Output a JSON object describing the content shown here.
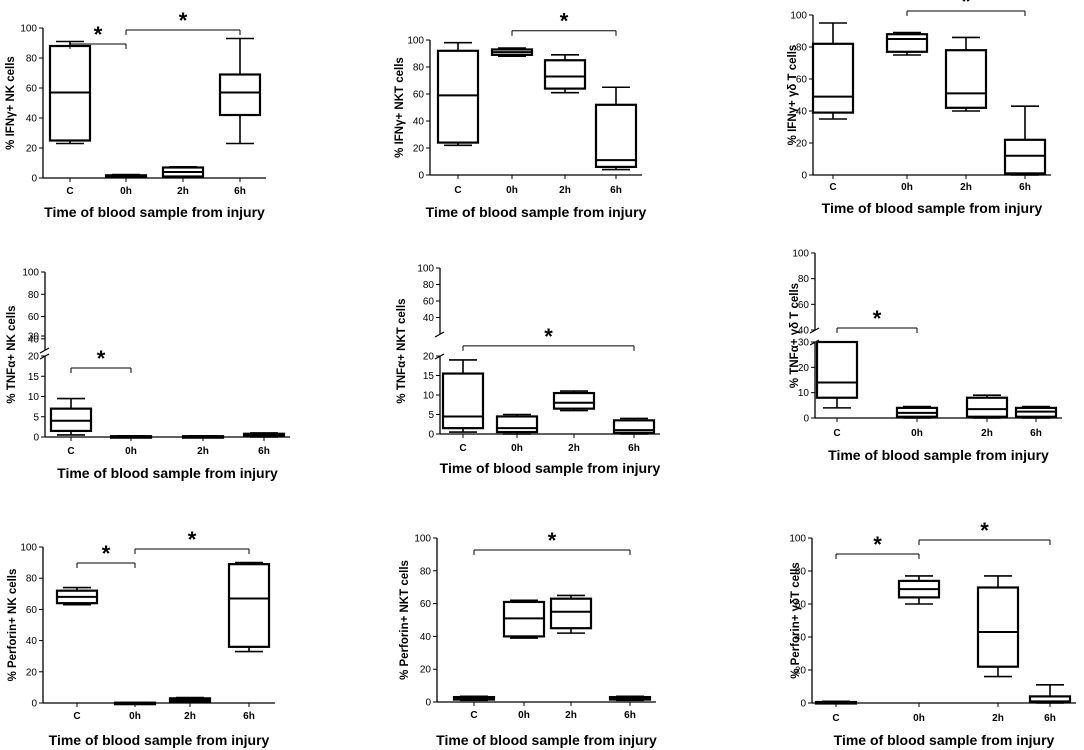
{
  "chart_data": [
    {
      "type": "box",
      "row": 0,
      "col": 0,
      "ylabel": "% IFNγ+ NK cells",
      "xlabel": "Time of blood sample from injury",
      "categories": [
        "C",
        "0h",
        "2h",
        "6h"
      ],
      "ylim": [
        0,
        100
      ],
      "yticks": [
        "0",
        "20",
        "40",
        "60",
        "80",
        "100"
      ],
      "boxes": [
        {
          "min": 23,
          "q1": 25,
          "median": 57,
          "q3": 88,
          "max": 91
        },
        {
          "min": 0.3,
          "q1": 0.8,
          "median": 1.2,
          "q3": 1.8,
          "max": 2.3
        },
        {
          "min": 0.5,
          "q1": 1,
          "median": 4,
          "q3": 7,
          "max": 7.5
        },
        {
          "min": 23,
          "q1": 42,
          "median": 57,
          "q3": 69,
          "max": 93
        }
      ],
      "significance": [
        {
          "from": 0,
          "to": 1,
          "label": "*"
        },
        {
          "from": 1,
          "to": 3,
          "label": "*"
        }
      ]
    },
    {
      "type": "box",
      "row": 0,
      "col": 1,
      "ylabel": "% IFNγ+ NKT cells",
      "xlabel": "Time of blood sample from injury",
      "categories": [
        "C",
        "0h",
        "2h",
        "6h"
      ],
      "ylim": [
        0,
        100
      ],
      "yticks": [
        "0",
        "20",
        "40",
        "60",
        "80",
        "100"
      ],
      "boxes": [
        {
          "min": 22,
          "q1": 24,
          "median": 59,
          "q3": 92,
          "max": 98
        },
        {
          "min": 88,
          "q1": 89,
          "median": 91,
          "q3": 93,
          "max": 94
        },
        {
          "min": 61,
          "q1": 64,
          "median": 73,
          "q3": 85,
          "max": 89
        },
        {
          "min": 4,
          "q1": 6,
          "median": 11,
          "q3": 52,
          "max": 65
        }
      ],
      "significance": [
        {
          "from": 1,
          "to": 3,
          "label": "*"
        }
      ]
    },
    {
      "type": "box",
      "row": 0,
      "col": 2,
      "ylabel": "% IFNγ+ γδ T cells",
      "xlabel": "Time of blood sample from injury",
      "categories": [
        "C",
        "0h",
        "2h",
        "6h"
      ],
      "ylim": [
        0,
        100
      ],
      "yticks": [
        "0",
        "20",
        "40",
        "60",
        "80",
        "100"
      ],
      "boxes": [
        {
          "min": 35,
          "q1": 39,
          "median": 49,
          "q3": 82,
          "max": 95
        },
        {
          "min": 75,
          "q1": 77,
          "median": 85,
          "q3": 88,
          "max": 89
        },
        {
          "min": 40,
          "q1": 42,
          "median": 51,
          "q3": 78,
          "max": 86
        },
        {
          "min": 0,
          "q1": 1,
          "median": 12,
          "q3": 22,
          "max": 43
        }
      ],
      "significance": [
        {
          "from": 1,
          "to": 3,
          "label": "*"
        }
      ]
    },
    {
      "type": "box",
      "row": 1,
      "col": 0,
      "ylabel": "% TNFα+ NK cells",
      "xlabel": "Time of blood sample from injury",
      "categories": [
        "C",
        "0h",
        "2h",
        "6h"
      ],
      "ylim": [
        0,
        100
      ],
      "broken_axis": [
        20,
        30
      ],
      "yticks": [
        "0",
        "5",
        "10",
        "15",
        "20",
        "30",
        "40",
        "60",
        "80",
        "100"
      ],
      "boxes": [
        {
          "min": 0.5,
          "q1": 1.5,
          "median": 4,
          "q3": 7,
          "max": 9.5
        },
        {
          "min": 0,
          "q1": 0,
          "median": 0.1,
          "q3": 0.2,
          "max": 0.3
        },
        {
          "min": 0,
          "q1": 0,
          "median": 0.1,
          "q3": 0.2,
          "max": 0.3
        },
        {
          "min": 0,
          "q1": 0.2,
          "median": 0.5,
          "q3": 0.8,
          "max": 1
        }
      ],
      "significance": [
        {
          "from": 0,
          "to": 1,
          "label": "*"
        }
      ]
    },
    {
      "type": "box",
      "row": 1,
      "col": 1,
      "ylabel": "% TNFα+ NKT cells",
      "xlabel": "Time of blood sample from injury",
      "categories": [
        "C",
        "0h",
        "2h",
        "6h"
      ],
      "ylim": [
        0,
        100
      ],
      "broken_axis": [
        20,
        30
      ],
      "yticks": [
        "0",
        "5",
        "10",
        "15",
        "20",
        "40",
        "60",
        "80",
        "100"
      ],
      "boxes": [
        {
          "min": 0.5,
          "q1": 1.5,
          "median": 4.5,
          "q3": 15.5,
          "max": 19
        },
        {
          "min": 0,
          "q1": 0.5,
          "median": 1.5,
          "q3": 4.5,
          "max": 5
        },
        {
          "min": 6,
          "q1": 6.5,
          "median": 8,
          "q3": 10.5,
          "max": 11
        },
        {
          "min": 0,
          "q1": 0.3,
          "median": 1,
          "q3": 3.5,
          "max": 4
        }
      ],
      "significance": [
        {
          "from": 0,
          "to": 3,
          "label": "*"
        }
      ]
    },
    {
      "type": "box",
      "row": 1,
      "col": 2,
      "ylabel": "% TNFα+ γδ T cells",
      "xlabel": "Time of blood sample from injury",
      "categories": [
        "C",
        "0h",
        "2h",
        "6h"
      ],
      "ylim": [
        0,
        100
      ],
      "broken_axis": [
        30,
        40
      ],
      "yticks": [
        "0",
        "10",
        "20",
        "30",
        "40",
        "60",
        "80",
        "100"
      ],
      "boxes": [
        {
          "min": 4,
          "q1": 8,
          "median": 14,
          "q3": 30,
          "max": 30
        },
        {
          "min": 0,
          "q1": 0.5,
          "median": 2,
          "q3": 4,
          "max": 4.5
        },
        {
          "min": 0,
          "q1": 0.5,
          "median": 3.5,
          "q3": 8,
          "max": 9
        },
        {
          "min": 0,
          "q1": 0.5,
          "median": 2.5,
          "q3": 4,
          "max": 4.5
        }
      ],
      "significance": [
        {
          "from": 0,
          "to": 1,
          "label": "*"
        }
      ]
    },
    {
      "type": "box",
      "row": 2,
      "col": 0,
      "ylabel": "% Perforin+ NK cells",
      "xlabel": "Time of blood sample from injury",
      "categories": [
        "C",
        "0h",
        "2h",
        "6h"
      ],
      "ylim": [
        0,
        100
      ],
      "yticks": [
        "0",
        "20",
        "40",
        "60",
        "80",
        "100"
      ],
      "boxes": [
        {
          "min": 63,
          "q1": 64,
          "median": 68,
          "q3": 72,
          "max": 74
        },
        {
          "min": 0,
          "q1": 0,
          "median": 0.1,
          "q3": 0.2,
          "max": 0.3
        },
        {
          "min": 0.5,
          "q1": 1,
          "median": 2,
          "q3": 3,
          "max": 3.5
        },
        {
          "min": 33,
          "q1": 36,
          "median": 67,
          "q3": 89,
          "max": 90
        }
      ],
      "significance": [
        {
          "from": 0,
          "to": 1,
          "label": "*"
        },
        {
          "from": 1,
          "to": 3,
          "label": "*"
        }
      ]
    },
    {
      "type": "box",
      "row": 2,
      "col": 1,
      "ylabel": "% Perforin+ NKT cells",
      "xlabel": "Time of blood sample from injury",
      "categories": [
        "C",
        "0h",
        "2h",
        "6h"
      ],
      "ylim": [
        0,
        100
      ],
      "yticks": [
        "0",
        "20",
        "40",
        "60",
        "80",
        "100"
      ],
      "boxes": [
        {
          "min": 1,
          "q1": 1.5,
          "median": 2,
          "q3": 3,
          "max": 3.5
        },
        {
          "min": 39,
          "q1": 40,
          "median": 51,
          "q3": 61,
          "max": 62
        },
        {
          "min": 42,
          "q1": 45,
          "median": 55,
          "q3": 63,
          "max": 65
        },
        {
          "min": 1,
          "q1": 1.5,
          "median": 2,
          "q3": 3,
          "max": 3.5
        }
      ],
      "significance": [
        {
          "from": 0,
          "to": 3,
          "label": "*"
        }
      ]
    },
    {
      "type": "box",
      "row": 2,
      "col": 2,
      "ylabel": "% Perforin+ γδT cells",
      "xlabel": "Time of blood sample from injury",
      "categories": [
        "C",
        "0h",
        "2h",
        "6h"
      ],
      "ylim": [
        0,
        100
      ],
      "yticks": [
        "0",
        "20",
        "40",
        "60",
        "80",
        "100"
      ],
      "boxes": [
        {
          "min": 0,
          "q1": 0,
          "median": 0.3,
          "q3": 0.6,
          "max": 1
        },
        {
          "min": 60,
          "q1": 64,
          "median": 69,
          "q3": 74,
          "max": 77
        },
        {
          "min": 16,
          "q1": 22,
          "median": 43,
          "q3": 70,
          "max": 77
        },
        {
          "min": 0,
          "q1": 0.5,
          "median": 1,
          "q3": 4,
          "max": 11
        }
      ],
      "significance": [
        {
          "from": 0,
          "to": 1,
          "label": "*"
        },
        {
          "from": 1,
          "to": 3,
          "label": "*"
        }
      ]
    }
  ]
}
